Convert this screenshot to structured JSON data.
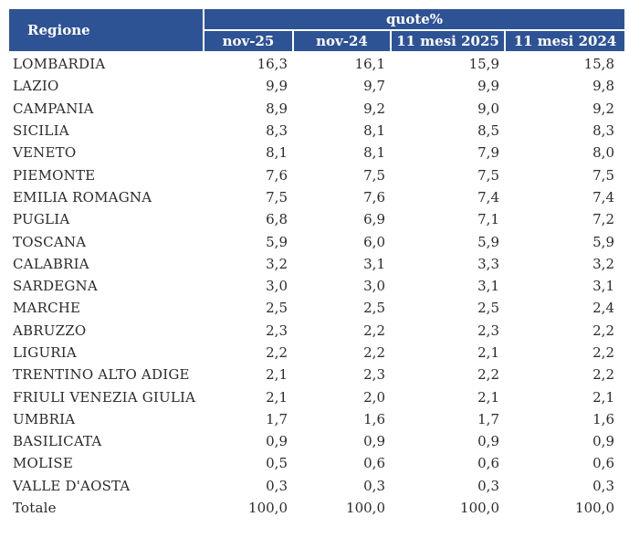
{
  "colors": {
    "header_bg": "#2e5395",
    "header_text": "#ffffff",
    "body_text": "#2b2b2b"
  },
  "table": {
    "header": {
      "region_label": "Regione",
      "group_label": "quote%",
      "columns": [
        "nov-25",
        "nov-24",
        "11 mesi 2025",
        "11 mesi 2024"
      ]
    },
    "rows": [
      {
        "name": "LOMBARDIA",
        "values": [
          "16,3",
          "16,1",
          "15,9",
          "15,8"
        ]
      },
      {
        "name": "LAZIO",
        "values": [
          "9,9",
          "9,7",
          "9,9",
          "9,8"
        ]
      },
      {
        "name": "CAMPANIA",
        "values": [
          "8,9",
          "9,2",
          "9,0",
          "9,2"
        ]
      },
      {
        "name": "SICILIA",
        "values": [
          "8,3",
          "8,1",
          "8,5",
          "8,3"
        ]
      },
      {
        "name": "VENETO",
        "values": [
          "8,1",
          "8,1",
          "7,9",
          "8,0"
        ]
      },
      {
        "name": "PIEMONTE",
        "values": [
          "7,6",
          "7,5",
          "7,5",
          "7,5"
        ]
      },
      {
        "name": "EMILIA ROMAGNA",
        "values": [
          "7,5",
          "7,6",
          "7,4",
          "7,4"
        ]
      },
      {
        "name": "PUGLIA",
        "values": [
          "6,8",
          "6,9",
          "7,1",
          "7,2"
        ]
      },
      {
        "name": "TOSCANA",
        "values": [
          "5,9",
          "6,0",
          "5,9",
          "5,9"
        ]
      },
      {
        "name": "CALABRIA",
        "values": [
          "3,2",
          "3,1",
          "3,3",
          "3,2"
        ]
      },
      {
        "name": "SARDEGNA",
        "values": [
          "3,0",
          "3,0",
          "3,1",
          "3,1"
        ]
      },
      {
        "name": "MARCHE",
        "values": [
          "2,5",
          "2,5",
          "2,5",
          "2,4"
        ]
      },
      {
        "name": "ABRUZZO",
        "values": [
          "2,3",
          "2,2",
          "2,3",
          "2,2"
        ]
      },
      {
        "name": "LIGURIA",
        "values": [
          "2,2",
          "2,2",
          "2,1",
          "2,2"
        ]
      },
      {
        "name": "TRENTINO ALTO ADIGE",
        "values": [
          "2,1",
          "2,3",
          "2,2",
          "2,2"
        ]
      },
      {
        "name": "FRIULI VENEZIA GIULIA",
        "values": [
          "2,1",
          "2,0",
          "2,1",
          "2,1"
        ]
      },
      {
        "name": "UMBRIA",
        "values": [
          "1,7",
          "1,6",
          "1,7",
          "1,6"
        ]
      },
      {
        "name": "BASILICATA",
        "values": [
          "0,9",
          "0,9",
          "0,9",
          "0,9"
        ]
      },
      {
        "name": "MOLISE",
        "values": [
          "0,5",
          "0,6",
          "0,6",
          "0,6"
        ]
      },
      {
        "name": "VALLE D'AOSTA",
        "values": [
          "0,3",
          "0,3",
          "0,3",
          "0,3"
        ]
      }
    ],
    "total_row": {
      "name": "Totale",
      "values": [
        "100,0",
        "100,0",
        "100,0",
        "100,0"
      ]
    }
  }
}
